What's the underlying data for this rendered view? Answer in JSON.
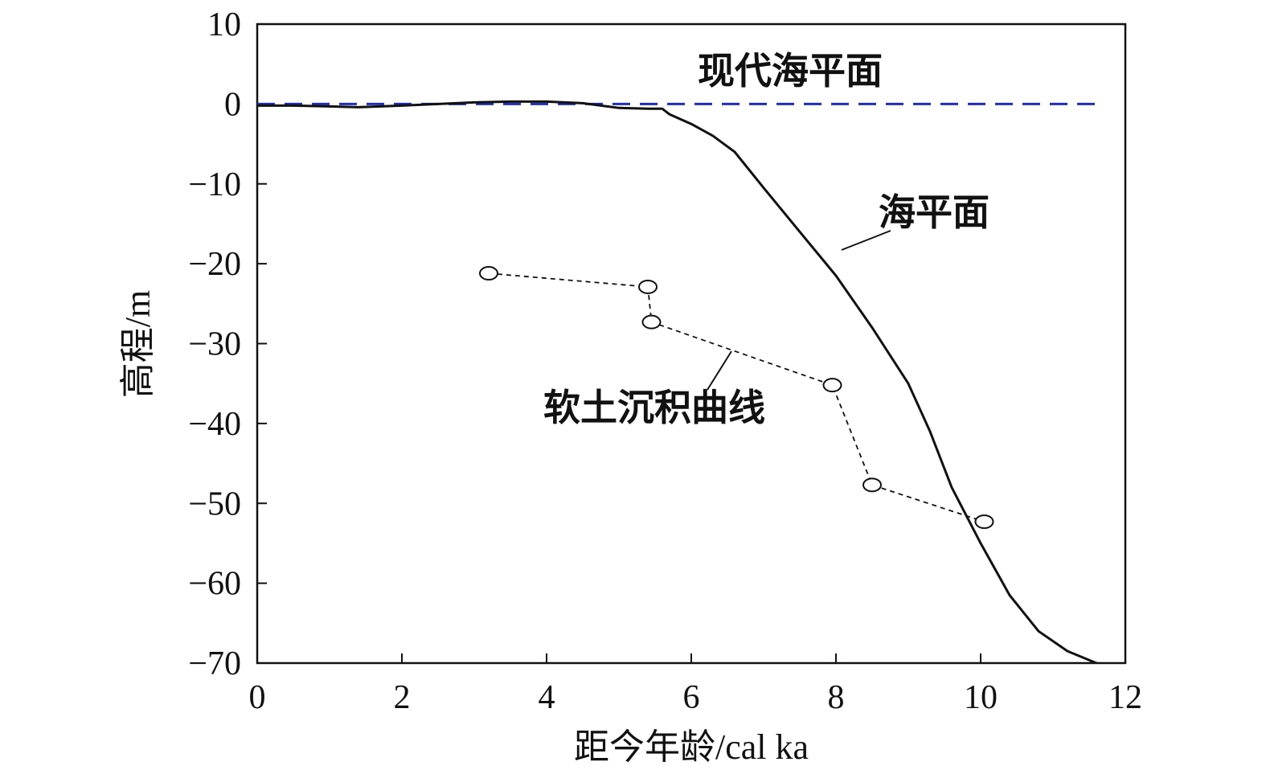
{
  "chart_data": {
    "type": "line",
    "xlabel": "距今年龄/cal ka",
    "ylabel": "高程/m",
    "xlim": [
      0,
      12
    ],
    "ylim": [
      -70,
      10
    ],
    "x_ticks": [
      "0",
      "2",
      "4",
      "6",
      "8",
      "10",
      "12"
    ],
    "y_ticks": [
      "10",
      "0",
      "−10",
      "−20",
      "−30",
      "−40",
      "−50",
      "−60",
      "−70"
    ],
    "grid": false,
    "series": [
      {
        "name": "现代海平面",
        "style": "dashed",
        "color": "#1f2fb0",
        "x": [
          0,
          11.6
        ],
        "y": [
          0,
          0
        ]
      },
      {
        "name": "海平面",
        "style": "solid",
        "color": "#111111",
        "x": [
          0,
          0.5,
          1.0,
          1.4,
          2.0,
          2.5,
          3.0,
          3.5,
          4.0,
          4.5,
          5.0,
          5.4,
          5.6,
          5.7,
          6.0,
          6.3,
          6.6,
          7.0,
          7.5,
          8.0,
          8.5,
          9.0,
          9.3,
          9.6,
          10.0,
          10.4,
          10.8,
          11.2,
          11.6,
          12.0
        ],
        "y": [
          -0.2,
          -0.2,
          -0.3,
          -0.4,
          -0.2,
          0.0,
          0.2,
          0.3,
          0.3,
          0.1,
          -0.5,
          -0.6,
          -0.6,
          -1.3,
          -2.5,
          -4.0,
          -6.0,
          -10.5,
          -16.0,
          -21.5,
          -28.0,
          -35.0,
          -41.0,
          -48.0,
          -55.0,
          -61.5,
          -66.0,
          -68.5,
          -70.0,
          -71.0
        ]
      },
      {
        "name": "软土沉积曲线",
        "style": "dotted-markers",
        "color": "#111111",
        "x": [
          3.2,
          5.4,
          5.45,
          7.95,
          8.5,
          10.05
        ],
        "y": [
          -21.2,
          -22.9,
          -27.3,
          -35.2,
          -47.7,
          -52.3
        ]
      }
    ],
    "annotations": [
      "现代海平面",
      "海平面",
      "软土沉积曲线"
    ]
  }
}
